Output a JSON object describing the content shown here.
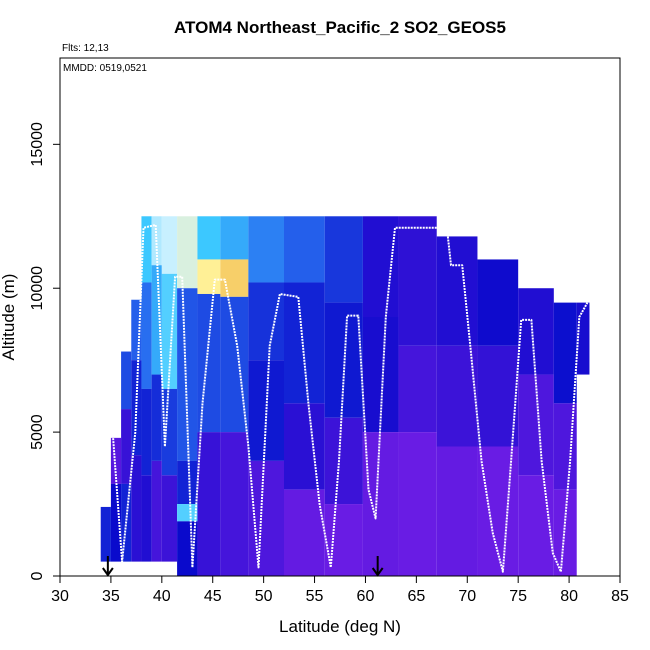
{
  "chart_data": {
    "type": "heatmap",
    "title": "ATOM4 Northeast_Pacific_2 SO2_GEOS5",
    "flights_note": "Flts: 12,13",
    "dates_note": "MMDD: 0519,0521",
    "xlabel": "Latitude (deg N)",
    "ylabel": "Altitude (m)",
    "xlim": [
      30,
      85
    ],
    "ylim": [
      0,
      18000
    ],
    "x_ticks": [
      30,
      35,
      40,
      45,
      50,
      55,
      60,
      65,
      70,
      75,
      80,
      85
    ],
    "y_ticks": [
      0,
      5000,
      10000,
      15000
    ],
    "grid": false,
    "colors": {
      "low": "#7b1fe8",
      "mid": "#0a0acc",
      "high_cyan": "#8fe0ff",
      "peak": "#e89a10",
      "flight_track": "#ffffff"
    },
    "arrow_latitudes": [
      34.7,
      61.2
    ],
    "flight_track": {
      "x": [
        34.7,
        35.2,
        36.1,
        37.4,
        38.2,
        39.4,
        40.3,
        41.3,
        42.0,
        43.0,
        44.0,
        45.2,
        46.2,
        47.4,
        48.5,
        49.5,
        50.6,
        51.6,
        53.4,
        54.4,
        55.5,
        56.6,
        57.4,
        58.2,
        59.3,
        60.3,
        61.0,
        62.0,
        62.9,
        65.0,
        68.0,
        68.4,
        69.5,
        70.3,
        71.4,
        72.5,
        73.5,
        74.3,
        75.3,
        76.3,
        77.3,
        78.4,
        79.2,
        80.1,
        81.0,
        81.8
      ],
      "y": [
        5000,
        4900,
        500,
        5000,
        12100,
        12200,
        4500,
        10400,
        10400,
        300,
        6000,
        10300,
        10300,
        8000,
        4500,
        300,
        8000,
        9800,
        9700,
        6000,
        2500,
        300,
        4000,
        9050,
        9050,
        3000,
        2000,
        9000,
        12100,
        12100,
        12100,
        10800,
        10800,
        8000,
        4000,
        1500,
        150,
        4000,
        8900,
        8900,
        4000,
        800,
        150,
        4000,
        9000,
        9500
      ]
    },
    "curtain_columns": [
      {
        "lat": 34.5,
        "top": 2400,
        "bottom": 500,
        "rows": [
          {
            "top": 2400,
            "bot": 500,
            "v": 0.3
          }
        ]
      },
      {
        "lat": 35.5,
        "top": 4800,
        "bottom": 500,
        "rows": [
          {
            "top": 4800,
            "bot": 3200,
            "v": 0.08
          },
          {
            "top": 3200,
            "bot": 500,
            "v": 0.25
          }
        ]
      },
      {
        "lat": 36.5,
        "top": 7800,
        "bottom": 500,
        "rows": [
          {
            "top": 7800,
            "bot": 5800,
            "v": 0.38
          },
          {
            "top": 5800,
            "bot": 3200,
            "v": 0.15
          },
          {
            "top": 3200,
            "bot": 500,
            "v": 0.3
          }
        ]
      },
      {
        "lat": 37.5,
        "top": 9600,
        "bottom": 500,
        "rows": [
          {
            "top": 9600,
            "bot": 7500,
            "v": 0.42
          },
          {
            "top": 7500,
            "bot": 4200,
            "v": 0.3
          },
          {
            "top": 4200,
            "bot": 500,
            "v": 0.18
          }
        ]
      },
      {
        "lat": 38.5,
        "top": 12500,
        "bottom": 500,
        "rows": [
          {
            "top": 12500,
            "bot": 10200,
            "v": 0.6
          },
          {
            "top": 10200,
            "bot": 6500,
            "v": 0.45
          },
          {
            "top": 6500,
            "bot": 3500,
            "v": 0.3
          },
          {
            "top": 3500,
            "bot": 500,
            "v": 0.2
          }
        ]
      },
      {
        "lat": 39.5,
        "top": 12500,
        "bottom": 500,
        "rows": [
          {
            "top": 12500,
            "bot": 10800,
            "v": 0.7
          },
          {
            "top": 10800,
            "bot": 7000,
            "v": 0.55
          },
          {
            "top": 7000,
            "bot": 4000,
            "v": 0.32
          },
          {
            "top": 4000,
            "bot": 500,
            "v": 0.12
          }
        ]
      },
      {
        "lat": 40.5,
        "top": 12500,
        "bottom": 500,
        "rows": [
          {
            "top": 12500,
            "bot": 10500,
            "v": 0.72
          },
          {
            "top": 10500,
            "bot": 6500,
            "v": 0.62
          },
          {
            "top": 6500,
            "bot": 3500,
            "v": 0.35
          },
          {
            "top": 3500,
            "bot": 500,
            "v": 0.14
          }
        ]
      },
      {
        "lat": 42.5,
        "top": 12500,
        "bottom": 0,
        "rows": [
          {
            "top": 12500,
            "bot": 10000,
            "v": 0.75
          },
          {
            "top": 10000,
            "bot": 4000,
            "v": 0.4
          },
          {
            "top": 4000,
            "bot": 2500,
            "v": 0.3
          },
          {
            "top": 2500,
            "bot": 1900,
            "v": 0.62
          },
          {
            "top": 1900,
            "bot": 0,
            "v": 0.25
          }
        ]
      },
      {
        "lat": 44.5,
        "top": 12500,
        "bottom": 0,
        "rows": [
          {
            "top": 12500,
            "bot": 11000,
            "v": 0.6
          },
          {
            "top": 11000,
            "bot": 9800,
            "v": 0.82
          },
          {
            "top": 9800,
            "bot": 5000,
            "v": 0.38
          },
          {
            "top": 5000,
            "bot": 0,
            "v": 0.15
          }
        ]
      },
      {
        "lat": 47.0,
        "top": 12500,
        "bottom": 0,
        "rows": [
          {
            "top": 12500,
            "bot": 11000,
            "v": 0.55
          },
          {
            "top": 11000,
            "bot": 9700,
            "v": 0.88
          },
          {
            "top": 9700,
            "bot": 5000,
            "v": 0.38
          },
          {
            "top": 5000,
            "bot": 0,
            "v": 0.12
          }
        ]
      },
      {
        "lat": 50.0,
        "top": 12500,
        "bottom": 0,
        "rows": [
          {
            "top": 12500,
            "bot": 10200,
            "v": 0.48
          },
          {
            "top": 10200,
            "bot": 7500,
            "v": 0.33
          },
          {
            "top": 7500,
            "bot": 4000,
            "v": 0.28
          },
          {
            "top": 4000,
            "bot": 0,
            "v": 0.1
          }
        ]
      },
      {
        "lat": 54.0,
        "top": 12500,
        "bottom": 0,
        "rows": [
          {
            "top": 12500,
            "bot": 10200,
            "v": 0.42
          },
          {
            "top": 10200,
            "bot": 6000,
            "v": 0.3
          },
          {
            "top": 6000,
            "bot": 3000,
            "v": 0.18
          },
          {
            "top": 3000,
            "bot": 0,
            "v": 0.05
          }
        ]
      },
      {
        "lat": 58.0,
        "top": 12500,
        "bottom": 0,
        "rows": [
          {
            "top": 12500,
            "bot": 9500,
            "v": 0.34
          },
          {
            "top": 9500,
            "bot": 5500,
            "v": 0.28
          },
          {
            "top": 5500,
            "bot": 2500,
            "v": 0.14
          },
          {
            "top": 2500,
            "bot": 0,
            "v": 0.04
          }
        ]
      },
      {
        "lat": 61.5,
        "top": 12500,
        "bottom": 0,
        "rows": [
          {
            "top": 12500,
            "bot": 9000,
            "v": 0.2
          },
          {
            "top": 9000,
            "bot": 5000,
            "v": 0.22
          },
          {
            "top": 5000,
            "bot": 0,
            "v": 0.05
          }
        ]
      },
      {
        "lat": 65.0,
        "top": 12500,
        "bottom": 0,
        "rows": [
          {
            "top": 12500,
            "bot": 8000,
            "v": 0.17
          },
          {
            "top": 8000,
            "bot": 5000,
            "v": 0.12
          },
          {
            "top": 5000,
            "bot": 0,
            "v": 0.04
          }
        ]
      },
      {
        "lat": 69.0,
        "top": 11800,
        "bottom": 0,
        "rows": [
          {
            "top": 11800,
            "bot": 8000,
            "v": 0.2
          },
          {
            "top": 8000,
            "bot": 4500,
            "v": 0.14
          },
          {
            "top": 4500,
            "bot": 0,
            "v": 0.05
          }
        ]
      },
      {
        "lat": 73.0,
        "top": 11000,
        "bottom": 0,
        "rows": [
          {
            "top": 11000,
            "bot": 8000,
            "v": 0.24
          },
          {
            "top": 8000,
            "bot": 4500,
            "v": 0.16
          },
          {
            "top": 4500,
            "bot": 0,
            "v": 0.04
          }
        ]
      },
      {
        "lat": 77.0,
        "top": 10000,
        "bottom": 0,
        "rows": [
          {
            "top": 10000,
            "bot": 7000,
            "v": 0.2
          },
          {
            "top": 7000,
            "bot": 3500,
            "v": 0.1
          },
          {
            "top": 3500,
            "bot": 0,
            "v": 0.04
          }
        ]
      },
      {
        "lat": 80.0,
        "top": 9500,
        "bottom": 0,
        "rows": [
          {
            "top": 9500,
            "bot": 6000,
            "v": 0.26
          },
          {
            "top": 6000,
            "bot": 3000,
            "v": 0.1
          },
          {
            "top": 3000,
            "bot": 0,
            "v": 0.04
          }
        ]
      },
      {
        "lat": 81.5,
        "top": 9500,
        "bottom": 7000,
        "rows": [
          {
            "top": 9500,
            "bot": 7000,
            "v": 0.22
          }
        ]
      }
    ]
  }
}
